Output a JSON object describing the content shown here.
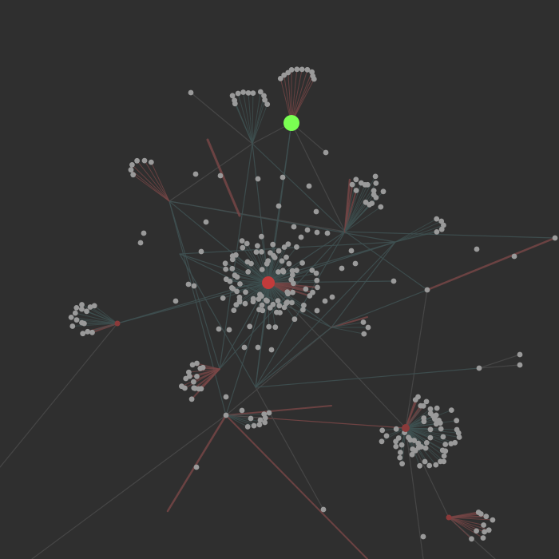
{
  "graph": {
    "background": "#2f2f2f",
    "edge_colors": {
      "dark_teal": "#3f5152",
      "gray": "#4a4a4a",
      "red": "#7a4747"
    },
    "node_colors": {
      "default": "#9a9a9a",
      "hub": "#8b3a3a",
      "selected": "#7aff52",
      "selected_core": "#c23b3b"
    }
  }
}
